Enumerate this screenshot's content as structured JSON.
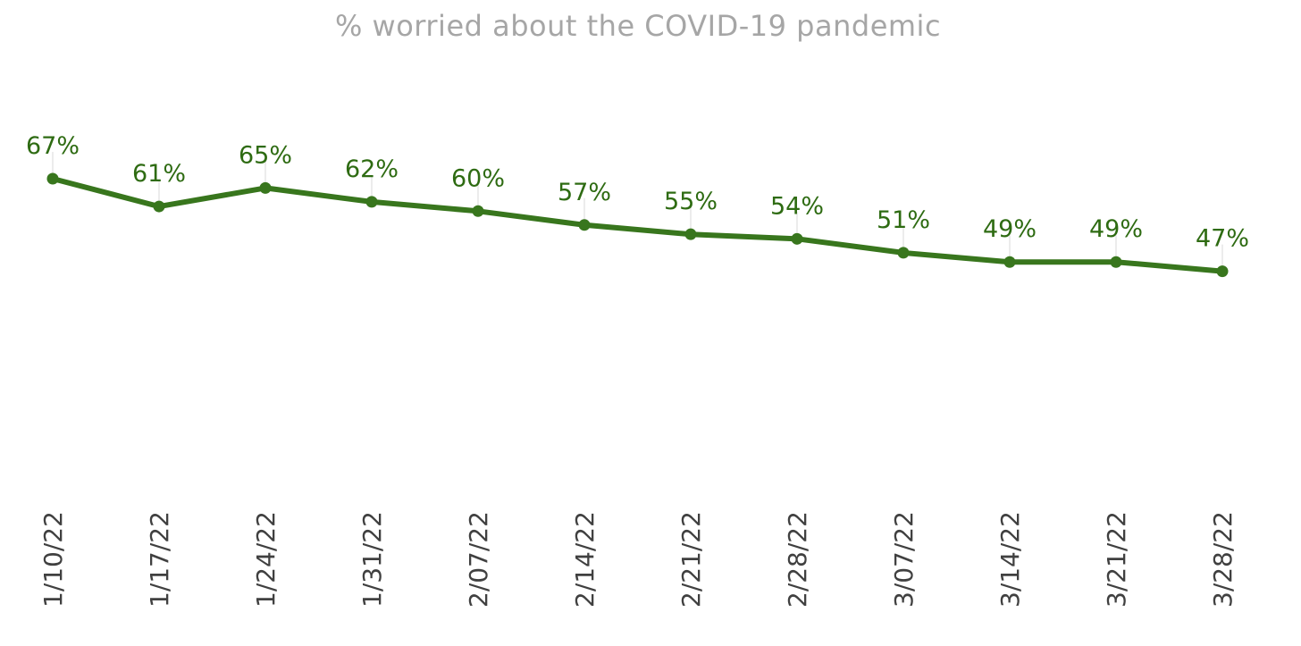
{
  "chart_data": {
    "type": "line",
    "title": "% worried about the COVID-19 pandemic",
    "xlabel": "",
    "ylabel": "",
    "categories": [
      "1/10/22",
      "1/17/22",
      "1/24/22",
      "1/31/22",
      "2/07/22",
      "2/14/22",
      "2/21/22",
      "2/28/22",
      "3/07/22",
      "3/14/22",
      "3/21/22",
      "3/28/22"
    ],
    "series": [
      {
        "values": [
          67,
          61,
          65,
          62,
          60,
          57,
          55,
          54,
          51,
          49,
          49,
          47
        ],
        "data_labels": [
          "67%",
          "61%",
          "65%",
          "62%",
          "60%",
          "57%",
          "55%",
          "54%",
          "51%",
          "49%",
          "49%",
          "47%"
        ],
        "color": "#38761d"
      }
    ],
    "grid": false,
    "legend": "none"
  }
}
